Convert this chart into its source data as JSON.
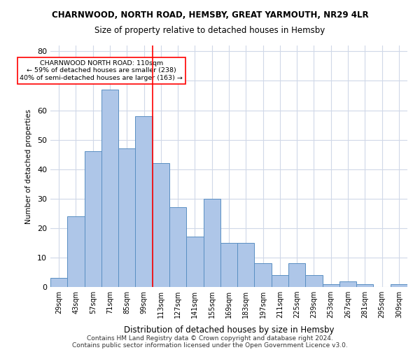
{
  "title1": "CHARNWOOD, NORTH ROAD, HEMSBY, GREAT YARMOUTH, NR29 4LR",
  "title2": "Size of property relative to detached houses in Hemsby",
  "xlabel": "Distribution of detached houses by size in Hemsby",
  "ylabel": "Number of detached properties",
  "bar_values": [
    3,
    24,
    46,
    67,
    47,
    58,
    42,
    27,
    17,
    30,
    15,
    15,
    8,
    4,
    8,
    4,
    1,
    2,
    1,
    0,
    1
  ],
  "bar_labels": [
    "29sqm",
    "43sqm",
    "57sqm",
    "71sqm",
    "85sqm",
    "99sqm",
    "113sqm",
    "127sqm",
    "141sqm",
    "155sqm",
    "169sqm",
    "183sqm",
    "197sqm",
    "211sqm",
    "225sqm",
    "239sqm",
    "253sqm",
    "267sqm",
    "281sqm",
    "295sqm",
    "309sqm"
  ],
  "bar_color": "#aec6e8",
  "bar_edge_color": "#5a8fc2",
  "grid_color": "#d0d8e8",
  "vline_x": 5.5,
  "vline_color": "red",
  "annotation_text": "CHARNWOOD NORTH ROAD: 110sqm\n← 59% of detached houses are smaller (238)\n40% of semi-detached houses are larger (163) →",
  "annotation_box_color": "white",
  "annotation_border_color": "red",
  "ylim": [
    0,
    82
  ],
  "yticks": [
    0,
    10,
    20,
    30,
    40,
    50,
    60,
    70,
    80
  ],
  "footer1": "Contains HM Land Registry data © Crown copyright and database right 2024.",
  "footer2": "Contains public sector information licensed under the Open Government Licence v3.0."
}
